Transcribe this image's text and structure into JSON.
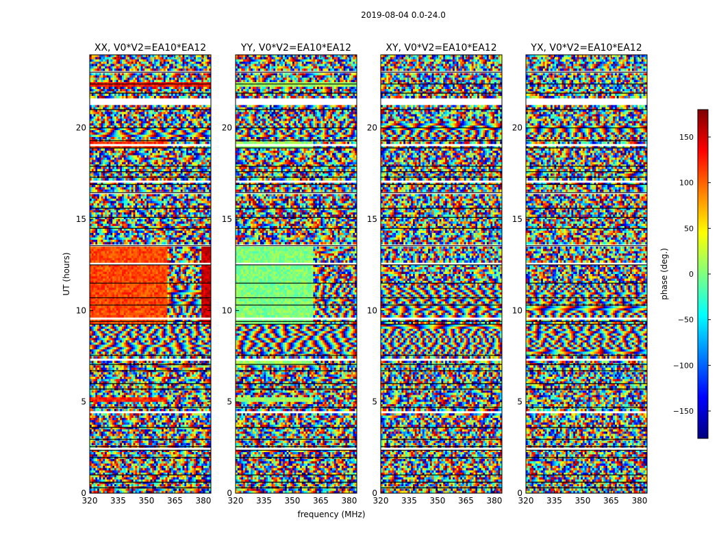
{
  "figure_title": "2019-08-04 0.0-24.0",
  "chart_data": [
    {
      "type": "heatmap",
      "title": "XX, V0*V2=EA10*EA12",
      "xlabel": "frequency (MHz)",
      "ylabel": "UT (hours)",
      "xlim": [
        320,
        384
      ],
      "ylim": [
        0,
        24
      ],
      "xticks": [
        320,
        335,
        350,
        365,
        380
      ],
      "yticks": [
        0,
        5,
        10,
        15,
        20
      ],
      "pattern": "coherent-band"
    },
    {
      "type": "heatmap",
      "title": "YY, V0*V2=EA10*EA12",
      "xlabel": "frequency (MHz)",
      "ylabel": "",
      "xlim": [
        320,
        384
      ],
      "ylim": [
        0,
        24
      ],
      "xticks": [
        320,
        335,
        350,
        365,
        380
      ],
      "yticks": [
        0,
        5,
        10,
        15,
        20
      ],
      "pattern": "coherent-band"
    },
    {
      "type": "heatmap",
      "title": "XY, V0*V2=EA10*EA12",
      "xlabel": "",
      "ylabel": "",
      "xlim": [
        320,
        384
      ],
      "ylim": [
        0,
        24
      ],
      "xticks": [
        320,
        335,
        350,
        365,
        380
      ],
      "yticks": [
        0,
        5,
        10,
        15,
        20
      ],
      "pattern": "fringe"
    },
    {
      "type": "heatmap",
      "title": "YX, V0*V2=EA10*EA12",
      "xlabel": "",
      "ylabel": "",
      "xlim": [
        320,
        384
      ],
      "ylim": [
        0,
        24
      ],
      "xticks": [
        320,
        335,
        350,
        365,
        380
      ],
      "yticks": [
        0,
        5,
        10,
        15,
        20
      ],
      "pattern": "fringe"
    }
  ],
  "colorbar": {
    "label": "phase (deg.)",
    "range": [
      -180,
      180
    ],
    "ticks": [
      150,
      100,
      50,
      0,
      -50,
      -100,
      -150
    ],
    "tick_labels": [
      "150",
      "100",
      "50",
      "0",
      "−50",
      "−100",
      "−150"
    ],
    "colormap": "jet",
    "colors": [
      "#00007f",
      "#0000ff",
      "#007fff",
      "#00ffff",
      "#7fff7f",
      "#ffff00",
      "#ff7f00",
      "#ff0000",
      "#7f0000"
    ]
  },
  "flagged_time_bands_hours": [
    [
      21.3,
      21.6
    ],
    [
      19.05,
      19.1
    ],
    [
      18.7,
      18.8
    ],
    [
      17.0,
      17.15
    ],
    [
      16.7,
      16.8
    ],
    [
      16.4,
      16.5
    ],
    [
      15.25,
      15.3
    ],
    [
      14.7,
      14.8
    ],
    [
      13.55,
      13.6
    ],
    [
      12.55,
      12.6
    ],
    [
      10.35,
      10.4
    ],
    [
      9.55,
      9.65
    ],
    [
      7.25,
      7.35
    ],
    [
      6.6,
      6.65
    ],
    [
      5.85,
      5.9
    ],
    [
      4.95,
      5.0
    ],
    [
      4.4,
      4.45
    ],
    [
      2.4,
      2.5
    ],
    [
      0.75,
      0.8
    ],
    [
      0.25,
      0.3
    ],
    [
      23.05,
      23.1
    ]
  ],
  "black_separator_lines_hours": [
    23.05,
    22.4,
    21.9,
    21.0,
    20.0,
    19.3,
    18.9,
    17.9,
    17.6,
    17.3,
    16.9,
    16.45,
    15.6,
    15.1,
    14.5,
    13.55,
    12.5,
    11.5,
    10.7,
    10.3,
    9.4,
    9.25,
    7.55,
    7.05,
    6.7,
    6.0,
    5.7,
    4.7,
    3.6,
    2.95,
    2.55,
    2.35,
    1.95,
    1.0,
    0.6,
    0.3
  ],
  "coherent_regions": [
    {
      "panel": 0,
      "t0": 9.3,
      "t1": 13.6,
      "f0": 320,
      "f1": 361,
      "phase": 110
    },
    {
      "panel": 0,
      "t0": 5.0,
      "t1": 5.3,
      "f0": 320,
      "f1": 361,
      "phase": 120
    },
    {
      "panel": 0,
      "t0": 18.9,
      "t1": 19.3,
      "f0": 320,
      "f1": 361,
      "phase": 115
    },
    {
      "panel": 0,
      "t0": 22.3,
      "t1": 22.5,
      "f0": 320,
      "f1": 384,
      "phase": 130
    },
    {
      "panel": 0,
      "t0": 9.3,
      "t1": 13.6,
      "f0": 379,
      "f1": 384,
      "phase": 155
    },
    {
      "panel": 1,
      "t0": 9.3,
      "t1": 13.6,
      "f0": 320,
      "f1": 361,
      "phase": 0
    },
    {
      "panel": 1,
      "t0": 5.0,
      "t1": 5.3,
      "f0": 320,
      "f1": 361,
      "phase": 10
    },
    {
      "panel": 1,
      "t0": 18.9,
      "t1": 19.3,
      "f0": 320,
      "f1": 361,
      "phase": 5
    },
    {
      "panel": 1,
      "t0": 22.3,
      "t1": 22.5,
      "f0": 320,
      "f1": 384,
      "phase": 15
    },
    {
      "panel": 1,
      "t0": 7.0,
      "t1": 7.3,
      "f0": 320,
      "f1": 361,
      "phase": 10
    }
  ],
  "fringe_bands_hours": [
    [
      7.6,
      9.3
    ],
    [
      9.6,
      11.4
    ],
    [
      19.5,
      20.3
    ]
  ]
}
